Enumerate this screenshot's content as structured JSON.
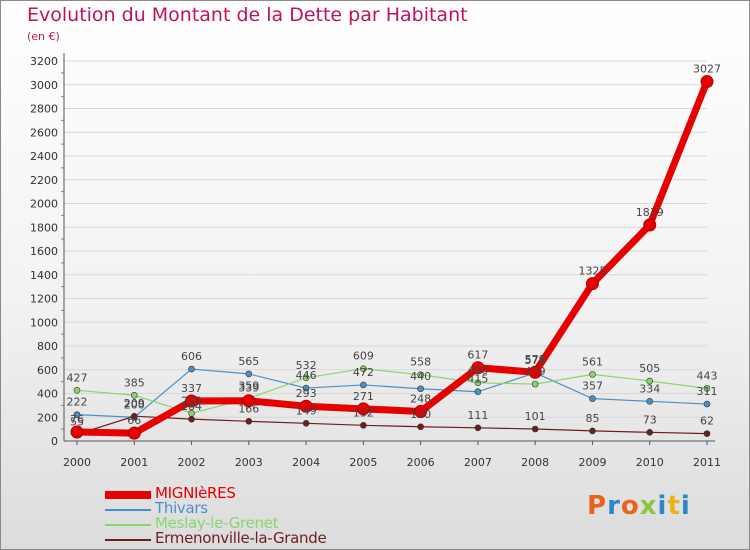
{
  "chart_data": {
    "type": "line",
    "title": "Evolution du Montant de la Dette par Habitant",
    "ylabel": "(en €)",
    "xlabel": "",
    "categories": [
      "2000",
      "2001",
      "2002",
      "2003",
      "2004",
      "2005",
      "2006",
      "2007",
      "2008",
      "2009",
      "2010",
      "2011"
    ],
    "ylim": [
      0,
      3200
    ],
    "yticks": [
      0,
      200,
      400,
      600,
      800,
      1000,
      1200,
      1400,
      1600,
      1800,
      2000,
      2200,
      2400,
      2600,
      2800,
      3000,
      3200
    ],
    "series": [
      {
        "name": "MIGNIèRES",
        "color": "#e60000",
        "values": [
          76,
          66,
          337,
          339,
          293,
          271,
          248,
          617,
          579,
          1325,
          1819,
          3027
        ]
      },
      {
        "name": "Thivars",
        "color": "#4a90c8",
        "values": [
          222,
          200,
          606,
          565,
          446,
          472,
          440,
          415,
          574,
          357,
          334,
          311
        ]
      },
      {
        "name": "Meslay-le-Grenet",
        "color": "#88d66a",
        "values": [
          427,
          385,
          233,
          359,
          532,
          609,
          558,
          490,
          479,
          561,
          505,
          443
        ]
      },
      {
        "name": "Ermenonville-la-Grande",
        "color": "#6b1f1f",
        "values": [
          55,
          209,
          184,
          166,
          149,
          132,
          120,
          111,
          101,
          85,
          73,
          62
        ]
      }
    ]
  },
  "logo": {
    "text": "Proxiti",
    "colors": [
      "#e8641e",
      "#2e86c8",
      "#e8641e",
      "#8ac53e",
      "#2e86c8",
      "#e8b41e",
      "#2e86c8"
    ]
  }
}
